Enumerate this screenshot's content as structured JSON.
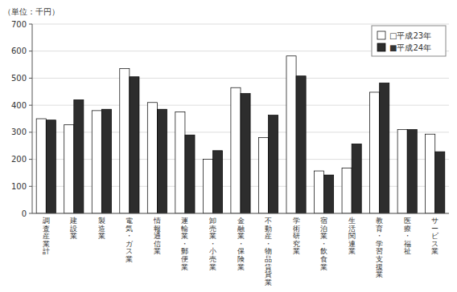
{
  "chart_data": {
    "type": "bar",
    "y_label": "（単位：千円）",
    "categories": [
      "調査産業計",
      "建設業",
      "製造業",
      "電気・ガス業",
      "情報通信業",
      "運輸業・郵便業",
      "卸売業・小売業",
      "金融業・保険業",
      "不動産・物品賃貸業",
      "学術研究業",
      "宿泊業・飲食業",
      "生活関連業",
      "教育・学習支援業",
      "医療・福祉",
      "サービス業"
    ],
    "series": [
      {
        "name": "□平成23年",
        "color": "#ffffff",
        "values": [
          350,
          328,
          380,
          535,
          410,
          375,
          200,
          465,
          280,
          582,
          157,
          168,
          448,
          310,
          293
        ]
      },
      {
        "name": "■平成24年",
        "color": "#2d2d2d",
        "values": [
          345,
          420,
          385,
          505,
          385,
          290,
          232,
          443,
          363,
          508,
          142,
          257,
          482,
          310,
          228
        ]
      }
    ],
    "ylim": [
      0,
      700
    ],
    "yticks": [
      0,
      100,
      200,
      300,
      400,
      500,
      600,
      700
    ],
    "grid": true,
    "legend": "upper right"
  }
}
